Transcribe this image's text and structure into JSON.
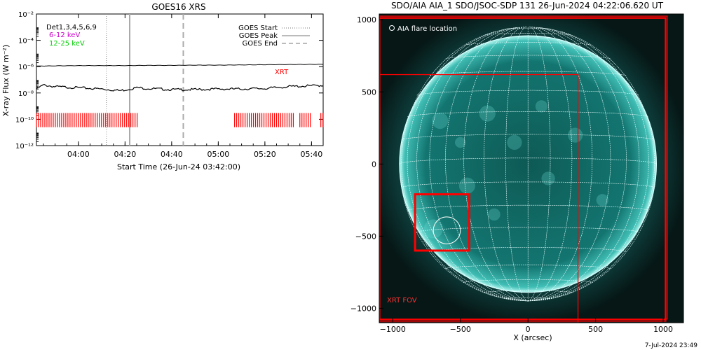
{
  "colors": {
    "background": "#ffffff",
    "axis": "#000000",
    "xrt_red": "#ff0000",
    "ch1": "#000000",
    "ch2": "#cc00cc",
    "ch3": "#00cc00",
    "disk": "#0a6b66",
    "grid": "#e8ffff"
  },
  "footer": {
    "timestamp": "7-Jul-2024 23:49"
  },
  "chart_data": [
    {
      "type": "line",
      "title": "GOES16 XRS",
      "xlabel": "Start Time (26-Jun-24 03:42:00)",
      "ylabel": "X-ray Flux (W m⁻²)",
      "y_scale": "log",
      "ylim": [
        1e-12,
        0.01
      ],
      "xlim": [
        "03:42",
        "05:45"
      ],
      "x_ticks": [
        "04:00",
        "04:20",
        "04:40",
        "05:00",
        "05:20",
        "05:40"
      ],
      "y_ticks": [
        "10⁻¹²",
        "10⁻¹⁰",
        "10⁻⁸",
        "10⁻⁶",
        "10⁻⁴",
        "10⁻²"
      ],
      "channels": [
        {
          "label": "Det1,3,4,5,6,9",
          "color": "#000000"
        },
        {
          "label": "6-12 keV",
          "color": "#cc00cc"
        },
        {
          "label": "12-25 keV",
          "color": "#00cc00"
        }
      ],
      "reference_lines": [
        {
          "name": "GOES Start",
          "time": "04:12",
          "style": "dotted"
        },
        {
          "name": "GOES Peak",
          "time": "04:22",
          "style": "solid"
        },
        {
          "name": "GOES End",
          "time": "04:45",
          "style": "dashed"
        }
      ],
      "annotation": "XRT",
      "series": [
        {
          "x": [
            "03:42",
            "03:50",
            "04:00",
            "04:10",
            "04:20",
            "04:30",
            "04:40",
            "04:50",
            "05:00",
            "05:10",
            "05:20",
            "05:30",
            "05:45"
          ],
          "y": [
            1.1e-06,
            1.15e-06,
            1.2e-06,
            1.2e-06,
            1.2e-06,
            1.25e-06,
            1.25e-06,
            1.3e-06,
            1.3e-06,
            1.35e-06,
            1.4e-06,
            1.45e-06,
            1.5e-06
          ]
        },
        {
          "x": [
            "03:42",
            "03:45",
            "03:50",
            "04:00",
            "04:10",
            "04:18",
            "04:25",
            "04:30",
            "04:40",
            "04:50",
            "05:00",
            "05:10",
            "05:20",
            "05:30",
            "05:40",
            "05:45"
          ],
          "y": [
            2e-08,
            4e-08,
            3e-08,
            2.5e-08,
            2e-08,
            1.5e-08,
            2.5e-08,
            2.2e-08,
            1.8e-08,
            1.8e-08,
            2e-08,
            2e-08,
            2.2e-08,
            3e-08,
            3.5e-08,
            3.8e-08
          ]
        }
      ],
      "xrt_observations": [
        {
          "start": "03:42",
          "end": "04:26"
        },
        {
          "start": "05:07",
          "end": "05:33"
        },
        {
          "start": "05:35",
          "end": "05:40"
        },
        {
          "start": "05:44",
          "end": "05:45"
        }
      ]
    },
    {
      "type": "image",
      "title": "SDO/AIA AIA_1 SDO/JSOC-SDP 131 26-Jun-2024 04:22:06.620 UT",
      "xlabel": "X (arcsec)",
      "xlim": [
        -1100,
        1150
      ],
      "ylim": [
        -1100,
        1040
      ],
      "x_ticks": [
        -1000,
        -500,
        0,
        500,
        1000
      ],
      "y_ticks": [
        1000,
        500,
        0,
        -500,
        -1000
      ],
      "solar_radius_arcsec": 950,
      "legend_text": "AIA flare location",
      "fov_label": "XRT FOV",
      "flare_location": {
        "x": -600,
        "y": -460,
        "radius": 100
      },
      "flare_box": {
        "x1": -835,
        "y1": -600,
        "x2": -435,
        "y2": -210
      },
      "rectangles": [
        {
          "x1": -1105,
          "y1": -1075,
          "x2": 1030,
          "y2": 1025
        },
        {
          "x1": -1105,
          "y1": -1090,
          "x2": 1020,
          "y2": 1015
        },
        {
          "x1": -1095,
          "y1": -1080,
          "x2": 1015,
          "y2": 1010
        },
        {
          "x1": -1105,
          "y1": -1100,
          "x2": 370,
          "y2": 620
        }
      ]
    }
  ]
}
